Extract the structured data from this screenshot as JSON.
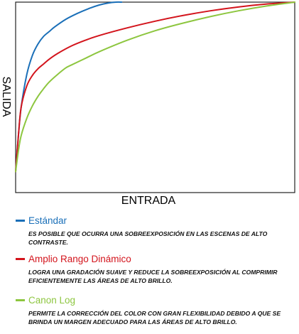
{
  "chart_data": {
    "type": "line",
    "xlabel": "ENTRADA",
    "ylabel": "SALIDA",
    "xlim": [
      0,
      100
    ],
    "ylim": [
      0,
      100
    ],
    "grid": false,
    "legend_position": "bottom",
    "series": [
      {
        "name": "Estándar",
        "color": "#1a6fb8",
        "desc": "ES POSIBLE QUE OCURRA UNA SOBREEXPOSICIÓN EN LAS ESCENAS DE ALTO CONTRASTE.",
        "x": [
          0,
          1,
          2,
          4,
          6,
          8,
          10,
          12,
          14,
          18,
          22,
          26,
          30,
          33,
          36,
          38
        ],
        "y": [
          11,
          30,
          45,
          62,
          72,
          78,
          82,
          84.5,
          87,
          91,
          94,
          96.5,
          98.5,
          99.5,
          100,
          100
        ]
      },
      {
        "name": "Amplio Rango Dinámico",
        "color": "#d3141c",
        "desc": "LOGRA UNA GRADACIÓN SUAVE Y REDUCE LA SOBREEXPOSICIÓN AL COMPRIMIR EFICIENTEMENTE LAS ÁREAS DE ALTO BRILLO.",
        "x": [
          0,
          1,
          2,
          4,
          6,
          8,
          10,
          12,
          15,
          20,
          25,
          30,
          40,
          50,
          60,
          70,
          80,
          90,
          100
        ],
        "y": [
          11,
          30,
          45,
          56,
          61.5,
          65,
          67.5,
          70,
          73,
          77,
          80,
          82.5,
          86.5,
          90,
          93,
          95.5,
          97.5,
          99,
          100
        ]
      },
      {
        "name": "Canon Log",
        "color": "#8dc63f",
        "desc": "PERMITE LA CORRECCIÓN DEL COLOR CON GRAN FLEXIBILIDAD DEBIDO A QUE SE BRINDA UN MARGEN ADECUADO PARA LAS ÁREAS DE ALTO BRILLO.",
        "x": [
          0,
          1,
          2,
          4,
          6,
          8,
          10,
          12,
          15,
          18,
          20,
          25,
          30,
          40,
          50,
          60,
          70,
          80,
          90,
          100
        ],
        "y": [
          11,
          22,
          30,
          39,
          45.5,
          50.5,
          54.5,
          58,
          62,
          65.5,
          67,
          70.5,
          74,
          80,
          85,
          89,
          92.5,
          95.5,
          98,
          100
        ]
      }
    ]
  }
}
